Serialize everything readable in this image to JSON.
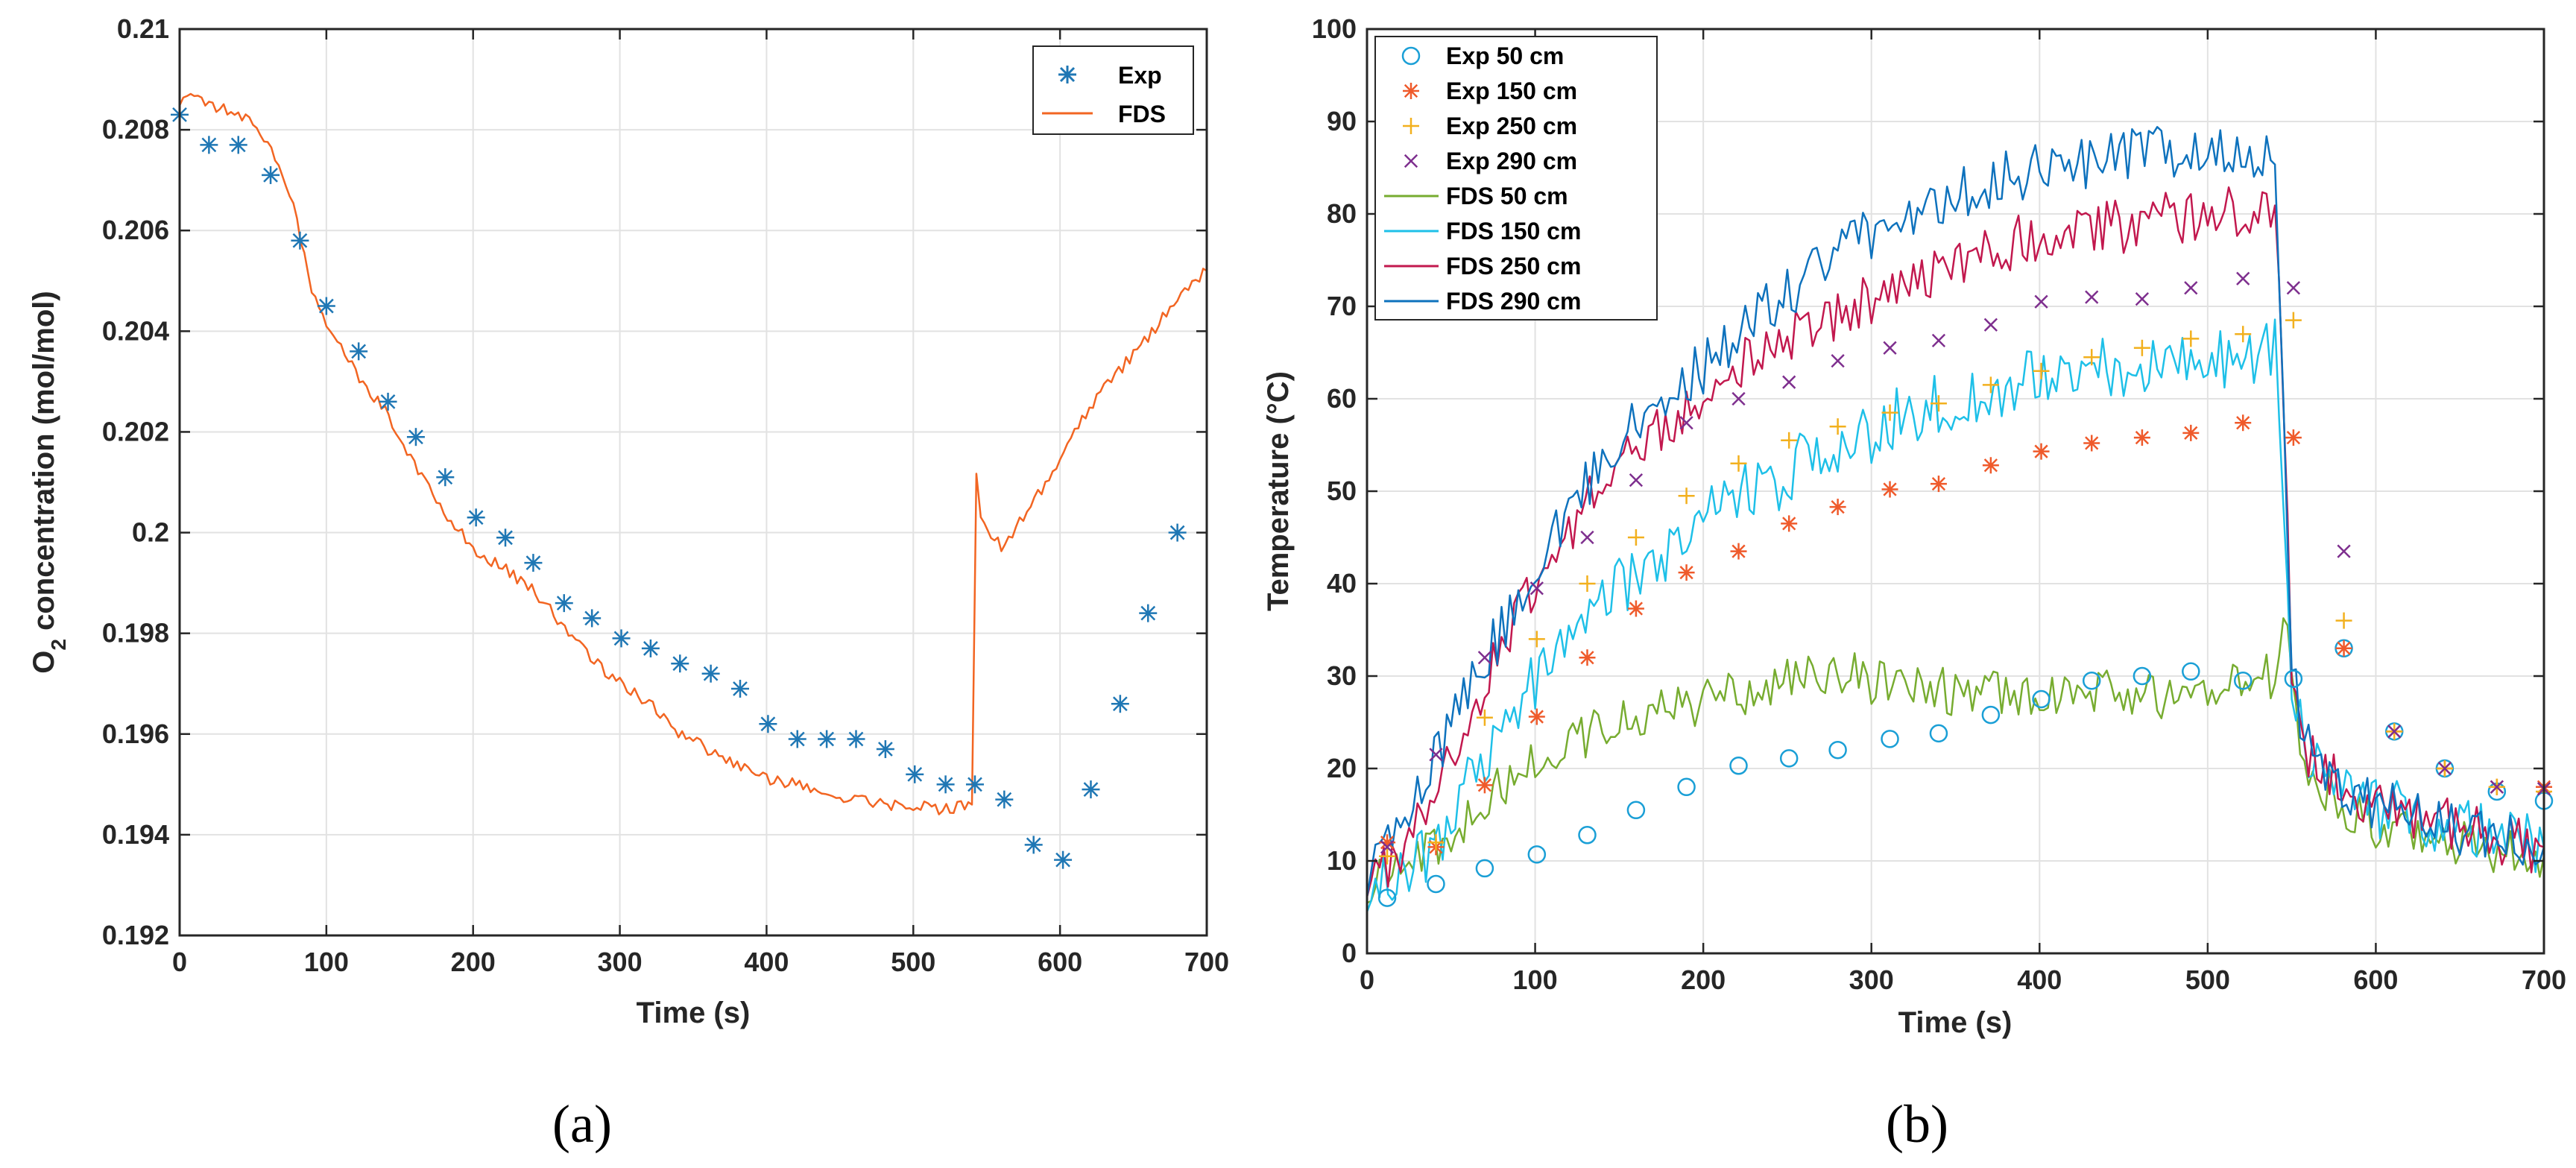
{
  "chart_data": [
    {
      "type": "line",
      "id": "a",
      "caption": "(a)",
      "xlabel": "Time (s)",
      "ylabel_prefix": "O",
      "ylabel_sub": "2",
      "ylabel_suffix": " concentration (mol/mol)",
      "xlim": [
        0,
        700
      ],
      "ylim": [
        0.192,
        0.21
      ],
      "xticks": [
        0,
        100,
        200,
        300,
        400,
        500,
        600,
        700
      ],
      "xtick_labels": [
        "0",
        "100",
        "200",
        "300",
        "400",
        "500",
        "600",
        "700"
      ],
      "yticks": [
        0.192,
        0.194,
        0.196,
        0.198,
        0.2,
        0.202,
        0.204,
        0.206,
        0.208,
        0.21
      ],
      "ytick_labels": [
        "0.192",
        "0.194",
        "0.196",
        "0.198",
        "0.2",
        "0.202",
        "0.204",
        "0.206",
        "0.208",
        "0.21"
      ],
      "grid": true,
      "legend_position": "top-right",
      "series": [
        {
          "name": "Exp",
          "kind": "scatter",
          "marker": "asterisk",
          "color": "#1f77b4",
          "x": [
            0,
            20,
            40,
            62,
            82,
            100,
            122,
            142,
            161,
            181,
            202,
            222,
            241,
            262,
            281,
            301,
            321,
            341,
            362,
            382,
            401,
            421,
            441,
            461,
            481,
            501,
            522,
            542,
            562,
            582,
            602,
            621,
            641,
            660,
            680
          ],
          "y": [
            0.2083,
            0.2077,
            0.2077,
            0.2071,
            0.2058,
            0.2045,
            0.2036,
            0.2026,
            0.2019,
            0.2011,
            0.2003,
            0.1999,
            0.1994,
            0.1986,
            0.1983,
            0.1979,
            0.1977,
            0.1974,
            0.1972,
            0.1969,
            0.1962,
            0.1959,
            0.1959,
            0.1959,
            0.1957,
            0.1952,
            0.195,
            0.195,
            0.1947,
            0.1938,
            0.1935,
            0.1949,
            0.1966,
            0.1984,
            0.2
          ]
        },
        {
          "name": "FDS",
          "kind": "line",
          "color": "#f26522",
          "x": [
            0,
            15,
            30,
            45,
            60,
            70,
            80,
            90,
            100,
            120,
            140,
            160,
            180,
            200,
            220,
            240,
            260,
            280,
            300,
            320,
            340,
            360,
            380,
            400,
            420,
            440,
            460,
            480,
            500,
            520,
            540,
            543,
            546,
            560,
            580,
            600,
            620,
            640,
            660,
            680,
            700
          ],
          "y": [
            0.2086,
            0.2086,
            0.2084,
            0.2082,
            0.2078,
            0.2072,
            0.2062,
            0.2048,
            0.2042,
            0.2032,
            0.2024,
            0.2014,
            0.2004,
            0.1997,
            0.1993,
            0.1989,
            0.1982,
            0.1975,
            0.197,
            0.1966,
            0.196,
            0.1957,
            0.1954,
            0.1951,
            0.195,
            0.1948,
            0.1947,
            0.1946,
            0.1946,
            0.1945,
            0.1946,
            0.2012,
            0.2002,
            0.1997,
            0.2005,
            0.2015,
            0.2025,
            0.2032,
            0.2039,
            0.2046,
            0.2052
          ]
        }
      ]
    },
    {
      "type": "line",
      "id": "b",
      "caption": "(b)",
      "xlabel": "Time (s)",
      "ylabel": "Temperature (°C)",
      "xlim": [
        0,
        700
      ],
      "ylim": [
        0,
        100
      ],
      "xticks": [
        0,
        100,
        200,
        300,
        400,
        500,
        600,
        700
      ],
      "xtick_labels": [
        "0",
        "100",
        "200",
        "300",
        "400",
        "500",
        "600",
        "700"
      ],
      "yticks": [
        0,
        10,
        20,
        30,
        40,
        50,
        60,
        70,
        80,
        90,
        100
      ],
      "ytick_labels": [
        "0",
        "10",
        "20",
        "30",
        "40",
        "50",
        "60",
        "70",
        "80",
        "90",
        "100"
      ],
      "grid": true,
      "legend_position": "top-left",
      "series": [
        {
          "name": "Exp 50 cm",
          "kind": "scatter",
          "marker": "circle",
          "color": "#1a9fd6",
          "x": [
            12,
            41,
            70,
            101,
            131,
            160,
            190,
            221,
            251,
            280,
            311,
            340,
            371,
            401,
            431,
            461,
            490,
            521,
            551,
            581,
            611,
            641,
            672,
            700
          ],
          "y": [
            6,
            7.5,
            9.2,
            10.7,
            12.8,
            15.5,
            18,
            20.3,
            21.1,
            22,
            23.2,
            23.8,
            25.8,
            27.5,
            29.5,
            30,
            30.5,
            29.5,
            29.7,
            33,
            24,
            20,
            17.5,
            16.5
          ]
        },
        {
          "name": "Exp 150 cm",
          "kind": "scatter",
          "marker": "asterisk",
          "color": "#ef5a2b",
          "x": [
            12,
            41,
            70,
            101,
            131,
            160,
            190,
            221,
            251,
            280,
            311,
            340,
            371,
            401,
            431,
            461,
            490,
            521,
            551,
            581,
            611,
            641,
            672,
            700
          ],
          "y": [
            12,
            11.5,
            18.2,
            25.6,
            32,
            37.3,
            41.2,
            43.5,
            46.5,
            48.3,
            50.2,
            50.8,
            52.8,
            54.3,
            55.2,
            55.8,
            56.3,
            57.4,
            55.8,
            33,
            24,
            20,
            18,
            18
          ]
        },
        {
          "name": "Exp 250 cm",
          "kind": "scatter",
          "marker": "plus",
          "color": "#f2b01e",
          "x": [
            12,
            41,
            70,
            101,
            131,
            160,
            190,
            221,
            251,
            280,
            311,
            340,
            371,
            401,
            431,
            461,
            490,
            521,
            551,
            581,
            611,
            641,
            672,
            700
          ],
          "y": [
            10.5,
            12,
            25.5,
            34,
            40,
            45,
            49.5,
            53,
            55.5,
            57,
            58.5,
            59.5,
            61.5,
            63,
            64.5,
            65.5,
            66.5,
            67,
            68.5,
            36,
            24,
            20,
            18,
            17.5
          ]
        },
        {
          "name": "Exp 290 cm",
          "kind": "scatter",
          "marker": "cross",
          "color": "#7e2f8e",
          "x": [
            12,
            41,
            70,
            101,
            131,
            160,
            190,
            221,
            251,
            280,
            311,
            340,
            371,
            401,
            431,
            461,
            490,
            521,
            551,
            581,
            611,
            641,
            672,
            700
          ],
          "y": [
            11.5,
            21.5,
            32,
            39.5,
            45,
            51.2,
            57.4,
            60,
            61.8,
            64.1,
            65.5,
            66.3,
            68,
            70.5,
            71,
            70.8,
            72,
            73,
            72,
            43.5,
            24,
            20,
            18,
            17.8
          ]
        },
        {
          "name": "FDS 50 cm",
          "kind": "line",
          "color": "#77ac30",
          "x": [
            0,
            10,
            20,
            30,
            40,
            60,
            80,
            100,
            120,
            140,
            160,
            180,
            200,
            220,
            240,
            260,
            280,
            300,
            320,
            340,
            360,
            380,
            400,
            420,
            440,
            460,
            480,
            500,
            520,
            540,
            545,
            550,
            560,
            580,
            600,
            620,
            640,
            660,
            680,
            700
          ],
          "y": [
            8,
            8,
            8.5,
            10,
            11.5,
            15,
            18,
            21,
            23,
            24.5,
            25.5,
            26.5,
            27,
            28,
            29.5,
            31,
            30.5,
            29.5,
            29,
            28.5,
            28,
            28,
            28,
            28,
            28,
            28,
            28,
            28.5,
            29,
            30,
            38,
            28,
            20,
            16,
            14,
            13,
            12.5,
            11.5,
            11,
            10.5
          ]
        },
        {
          "name": "FDS 150 cm",
          "kind": "line",
          "color": "#1ec0e8",
          "x": [
            0,
            10,
            20,
            30,
            40,
            60,
            80,
            100,
            120,
            140,
            160,
            180,
            200,
            220,
            240,
            260,
            280,
            300,
            320,
            340,
            360,
            380,
            400,
            420,
            440,
            460,
            480,
            500,
            520,
            540,
            545,
            550,
            560,
            580,
            600,
            620,
            640,
            660,
            680,
            700
          ],
          "y": [
            8,
            8,
            8.5,
            10,
            12,
            18,
            24,
            29,
            34,
            38,
            41,
            44,
            46.5,
            49,
            51,
            53,
            55,
            56.5,
            58,
            59,
            60,
            61,
            62,
            62.5,
            63,
            63.5,
            64,
            64.5,
            65,
            65,
            50,
            30,
            22,
            18,
            16,
            15,
            14,
            13,
            12,
            11.5
          ]
        },
        {
          "name": "FDS 250 cm",
          "kind": "line",
          "color": "#c2184e",
          "x": [
            0,
            10,
            20,
            30,
            40,
            60,
            80,
            100,
            120,
            140,
            160,
            180,
            200,
            220,
            240,
            260,
            280,
            300,
            320,
            340,
            360,
            380,
            400,
            420,
            440,
            460,
            480,
            500,
            520,
            540,
            545,
            550,
            560,
            580,
            600,
            620,
            640,
            660,
            680,
            700
          ],
          "y": [
            9,
            9,
            11,
            14,
            18,
            26,
            33,
            40,
            46,
            51,
            55,
            58,
            61,
            63.5,
            65.5,
            67.5,
            69.5,
            71,
            72.5,
            74,
            75.5,
            76.5,
            77.5,
            78,
            78.5,
            79,
            79.5,
            80,
            80,
            80,
            60,
            30,
            22,
            18,
            16,
            15,
            14,
            13,
            12,
            11.5
          ]
        },
        {
          "name": "FDS 290 cm",
          "kind": "line",
          "color": "#0e72bd",
          "x": [
            0,
            10,
            20,
            30,
            40,
            60,
            80,
            100,
            120,
            140,
            160,
            180,
            200,
            220,
            240,
            260,
            280,
            300,
            320,
            340,
            360,
            380,
            400,
            420,
            440,
            460,
            480,
            500,
            520,
            540,
            545,
            550,
            560,
            580,
            600,
            620,
            640,
            660,
            680,
            700
          ],
          "y": [
            9,
            10,
            14,
            17,
            21,
            28,
            35,
            42,
            48,
            53,
            57,
            60.5,
            63.5,
            67,
            70,
            73,
            76,
            78,
            80,
            81.5,
            83,
            84,
            85,
            85.5,
            86,
            86.5,
            87,
            87,
            87,
            86.5,
            60,
            30,
            22,
            18,
            16,
            15,
            14,
            13,
            12,
            11.5
          ]
        }
      ]
    }
  ]
}
